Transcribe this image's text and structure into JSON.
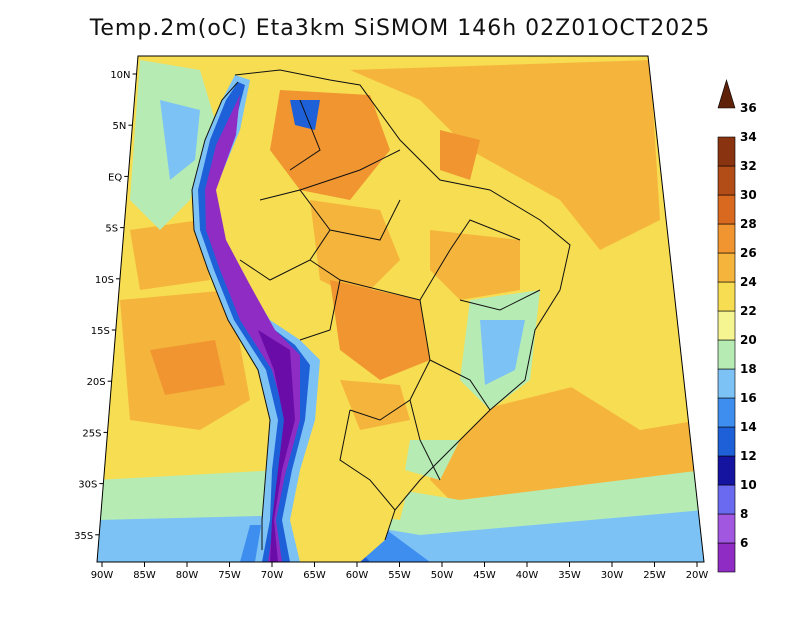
{
  "title": "Temp.2m(oC) Eta3km SiSMOM 146h 02Z01OCT2025",
  "lat_ticks": [
    "10N",
    "5N",
    "EQ",
    "5S",
    "10S",
    "15S",
    "20S",
    "25S",
    "30S",
    "35S"
  ],
  "lon_ticks": [
    "90W",
    "85W",
    "80W",
    "75W",
    "70W",
    "65W",
    "60W",
    "55W",
    "50W",
    "45W",
    "40W",
    "35W",
    "30W",
    "25W",
    "20W"
  ],
  "colorbar": {
    "labels": [
      "6",
      "8",
      "10",
      "12",
      "14",
      "16",
      "18",
      "20",
      "22",
      "24",
      "26",
      "28",
      "30",
      "32",
      "34",
      "36"
    ],
    "colors": [
      "#6a0da8",
      "#8e2cc4",
      "#a157e0",
      "#6a6af0",
      "#1414a0",
      "#1e60d8",
      "#3e8ef0",
      "#7dc2f5",
      "#b6ecb4",
      "#f5f591",
      "#f7dd52",
      "#f5b53c",
      "#f09530",
      "#d9691f",
      "#b34d17",
      "#8a3310",
      "#5e220a"
    ]
  },
  "colors": {
    "ocean_warm": "#f5b53c",
    "ocean_mild": "#f7dd52",
    "ocean_cool": "#b6ecb4",
    "andes_cold": "#6a0da8",
    "land_hot": "#f09530"
  }
}
